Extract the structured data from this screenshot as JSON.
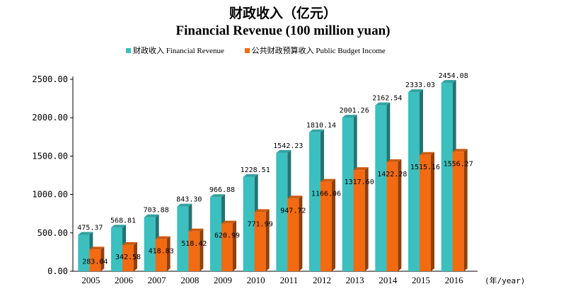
{
  "chart_data": {
    "type": "bar",
    "title": "财政收入（亿元）",
    "subtitle": "Financial Revenue (100 million yuan)",
    "xlabel": "(年/year)",
    "ylabel": "",
    "ylim": [
      0,
      2500
    ],
    "yticks": [
      "0.00",
      "500.00",
      "1000.00",
      "1500.00",
      "2000.00",
      "2500.00"
    ],
    "grid": false,
    "legend_position": "top",
    "categories": [
      "2005",
      "2006",
      "2007",
      "2008",
      "2009",
      "2010",
      "2011",
      "2012",
      "2013",
      "2014",
      "2015",
      "2016"
    ],
    "series": [
      {
        "name": "财政收入  Financial Revenue",
        "color": "#3cbfbf",
        "values": [
          475.37,
          568.81,
          703.88,
          843.3,
          966.88,
          1228.51,
          1542.23,
          1810.14,
          2001.26,
          2162.54,
          2333.03,
          2454.08
        ],
        "labels": [
          "475.37",
          "568.81",
          "703.88",
          "843.30",
          "966.88",
          "1228.51",
          "1542.23",
          "1810.14",
          "2001.26",
          "2162.54",
          "2333.03",
          "2454.08"
        ]
      },
      {
        "name": "公共财政预算收入 Public Budget Income",
        "color": "#f26a12",
        "values": [
          283.04,
          342.58,
          418.83,
          518.42,
          620.99,
          771.99,
          947.72,
          1166.06,
          1317.6,
          1422.28,
          1515.16,
          1556.27
        ],
        "labels": [
          "283.04",
          "342.58",
          "418.83",
          "518.42",
          "620.99",
          "771.99",
          "947.72",
          "1166.06",
          "1317.60",
          "1422.28",
          "1515.16",
          "1556.27"
        ]
      }
    ]
  }
}
